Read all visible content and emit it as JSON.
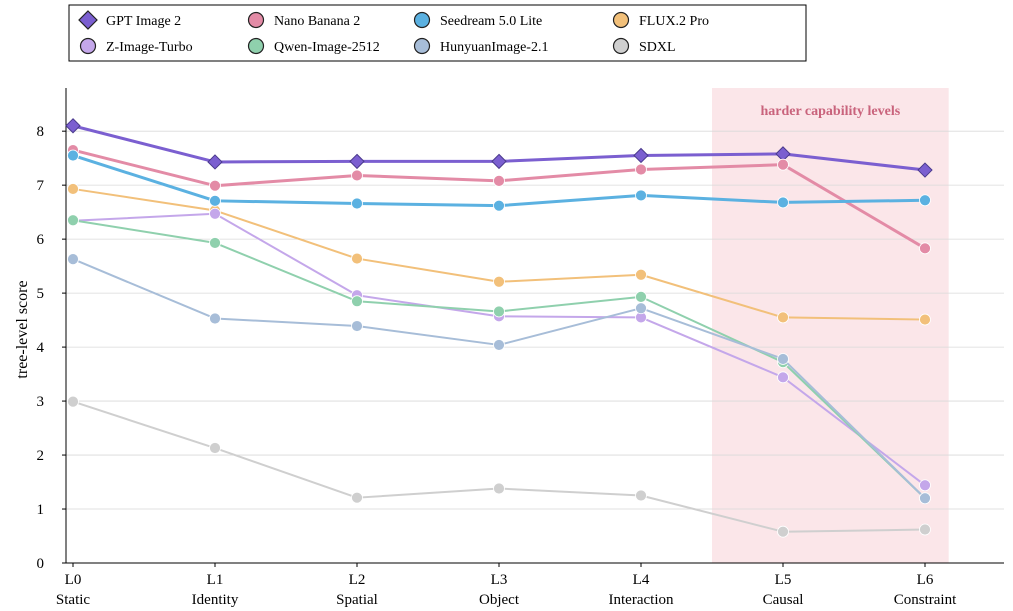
{
  "chart_data": {
    "type": "line",
    "categories": [
      {
        "level": "L0",
        "name": "Static"
      },
      {
        "level": "L1",
        "name": "Identity"
      },
      {
        "level": "L2",
        "name": "Spatial"
      },
      {
        "level": "L3",
        "name": "Object"
      },
      {
        "level": "L4",
        "name": "Interaction"
      },
      {
        "level": "L5",
        "name": "Causal"
      },
      {
        "level": "L6",
        "name": "Constraint"
      }
    ],
    "ylabel": "tree-level score",
    "ylim": [
      0,
      8.8
    ],
    "yticks": [
      0,
      1,
      2,
      3,
      4,
      5,
      6,
      7,
      8
    ],
    "grid": "horizontal",
    "legend": {
      "position": "top",
      "columns": 4
    },
    "shaded_region": {
      "from_category": "L5",
      "to_category": "L6",
      "label": "harder capability levels",
      "fill": "#fbe6e9",
      "text_color": "#c9637c"
    },
    "series": [
      {
        "name": "GPT Image 2",
        "color": "#7b5fd0",
        "marker": "diamond",
        "emphasis": "strong",
        "values": [
          8.1,
          7.43,
          7.44,
          7.44,
          7.55,
          7.58,
          7.28
        ]
      },
      {
        "name": "Nano Banana 2",
        "color": "#e38ba6",
        "marker": "circle",
        "emphasis": "strong",
        "values": [
          7.65,
          6.99,
          7.18,
          7.08,
          7.29,
          7.38,
          5.83
        ]
      },
      {
        "name": "Seedream 5.0 Lite",
        "color": "#5bb1e1",
        "marker": "circle",
        "emphasis": "strong",
        "values": [
          7.55,
          6.71,
          6.66,
          6.62,
          6.81,
          6.68,
          6.72
        ]
      },
      {
        "name": "FLUX.2 Pro",
        "color": "#f2c07a",
        "marker": "circle",
        "emphasis": "light",
        "values": [
          6.93,
          6.53,
          5.64,
          5.21,
          5.34,
          4.55,
          4.51
        ]
      },
      {
        "name": "Z-Image-Turbo",
        "color": "#c4a7ea",
        "marker": "circle",
        "emphasis": "light",
        "values": [
          6.34,
          6.47,
          4.96,
          4.57,
          4.55,
          3.44,
          1.44
        ]
      },
      {
        "name": "Qwen-Image-2512",
        "color": "#8fd0ad",
        "marker": "circle",
        "emphasis": "light",
        "values": [
          6.35,
          5.93,
          4.85,
          4.66,
          4.93,
          3.72,
          1.2
        ]
      },
      {
        "name": "HunyuanImage-2.1",
        "color": "#a7bdd8",
        "marker": "circle",
        "emphasis": "light",
        "values": [
          5.63,
          4.53,
          4.39,
          4.04,
          4.72,
          3.78,
          1.2
        ]
      },
      {
        "name": "SDXL",
        "color": "#cfcfcf",
        "marker": "circle",
        "emphasis": "light",
        "values": [
          2.99,
          2.13,
          1.21,
          1.38,
          1.25,
          0.58,
          0.62
        ]
      }
    ]
  }
}
